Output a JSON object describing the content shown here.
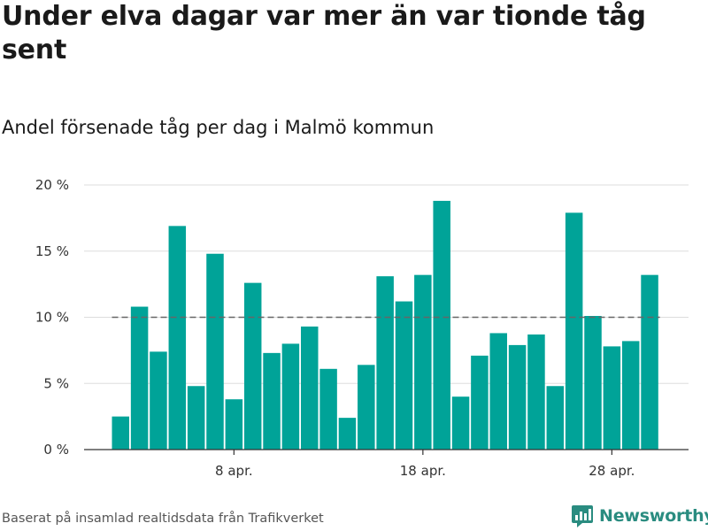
{
  "header": {
    "title": "Under elva dagar var mer än var tionde tåg sent",
    "subtitle": "Andel försenade tåg per dag i Malmö kommun"
  },
  "footer": {
    "source": "Baserat på insamlad realtidsdata från Trafikverket",
    "brand": "Newsworthy"
  },
  "colors": {
    "bar": "#00a398",
    "reference_line": "#666666",
    "grid": "#dddddd",
    "brand": "#2a8c80"
  },
  "chart_data": {
    "type": "bar",
    "x_start_day": 2,
    "values": [
      2.5,
      10.8,
      7.4,
      16.9,
      4.8,
      14.8,
      3.8,
      12.6,
      7.3,
      8.0,
      9.3,
      6.1,
      2.4,
      6.4,
      13.1,
      11.2,
      13.2,
      18.8,
      4.0,
      7.1,
      8.8,
      7.9,
      8.7,
      4.8,
      17.9,
      10.1,
      7.8,
      8.2,
      13.2
    ],
    "ylim": [
      0,
      20
    ],
    "y_ticks": [
      {
        "value": 0,
        "label": "0 %"
      },
      {
        "value": 5,
        "label": "5 %"
      },
      {
        "value": 10,
        "label": "10 %"
      },
      {
        "value": 15,
        "label": "15 %"
      },
      {
        "value": 20,
        "label": "20 %"
      }
    ],
    "x_ticks": [
      {
        "day": 8,
        "label": "8 apr."
      },
      {
        "day": 18,
        "label": "18 apr."
      },
      {
        "day": 28,
        "label": "28 apr."
      }
    ],
    "reference_line": {
      "value": 10,
      "style": "dashed"
    },
    "grid": true,
    "xlabel": "",
    "ylabel": ""
  }
}
